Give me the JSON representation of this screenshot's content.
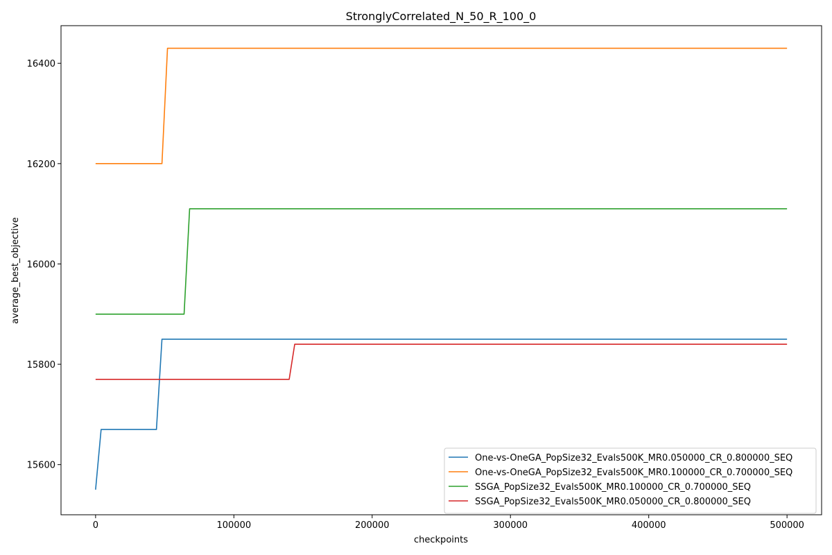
{
  "chart_data": {
    "type": "line",
    "title": "StronglyCorrelated_N_50_R_100_0",
    "xlabel": "checkpoints",
    "ylabel": "average_best_objective",
    "xlim": [
      -25000,
      525000
    ],
    "ylim": [
      15500,
      16475
    ],
    "xticks": [
      0,
      100000,
      200000,
      300000,
      400000,
      500000
    ],
    "yticks": [
      15600,
      15800,
      16000,
      16200,
      16400
    ],
    "grid": false,
    "legend_position": "lower-right",
    "series": [
      {
        "name": "One-vs-OneGA_PopSize32_Evals500K_MR0.050000_CR_0.800000_SEQ",
        "color": "#1f77b4",
        "x": [
          0,
          4000,
          44000,
          48000,
          500000
        ],
        "y": [
          15550,
          15670,
          15670,
          15850,
          15850
        ]
      },
      {
        "name": "One-vs-OneGA_PopSize32_Evals500K_MR0.100000_CR_0.700000_SEQ",
        "color": "#ff7f0e",
        "x": [
          0,
          48000,
          52000,
          500000
        ],
        "y": [
          16200,
          16200,
          16430,
          16430
        ]
      },
      {
        "name": "SSGA_PopSize32_Evals500K_MR0.100000_CR_0.700000_SEQ",
        "color": "#2ca02c",
        "x": [
          0,
          64000,
          68000,
          500000
        ],
        "y": [
          15900,
          15900,
          16110,
          16110
        ]
      },
      {
        "name": "SSGA_PopSize32_Evals500K_MR0.050000_CR_0.800000_SEQ",
        "color": "#d62728",
        "x": [
          0,
          140000,
          144000,
          500000
        ],
        "y": [
          15770,
          15770,
          15840,
          15840
        ]
      }
    ]
  }
}
